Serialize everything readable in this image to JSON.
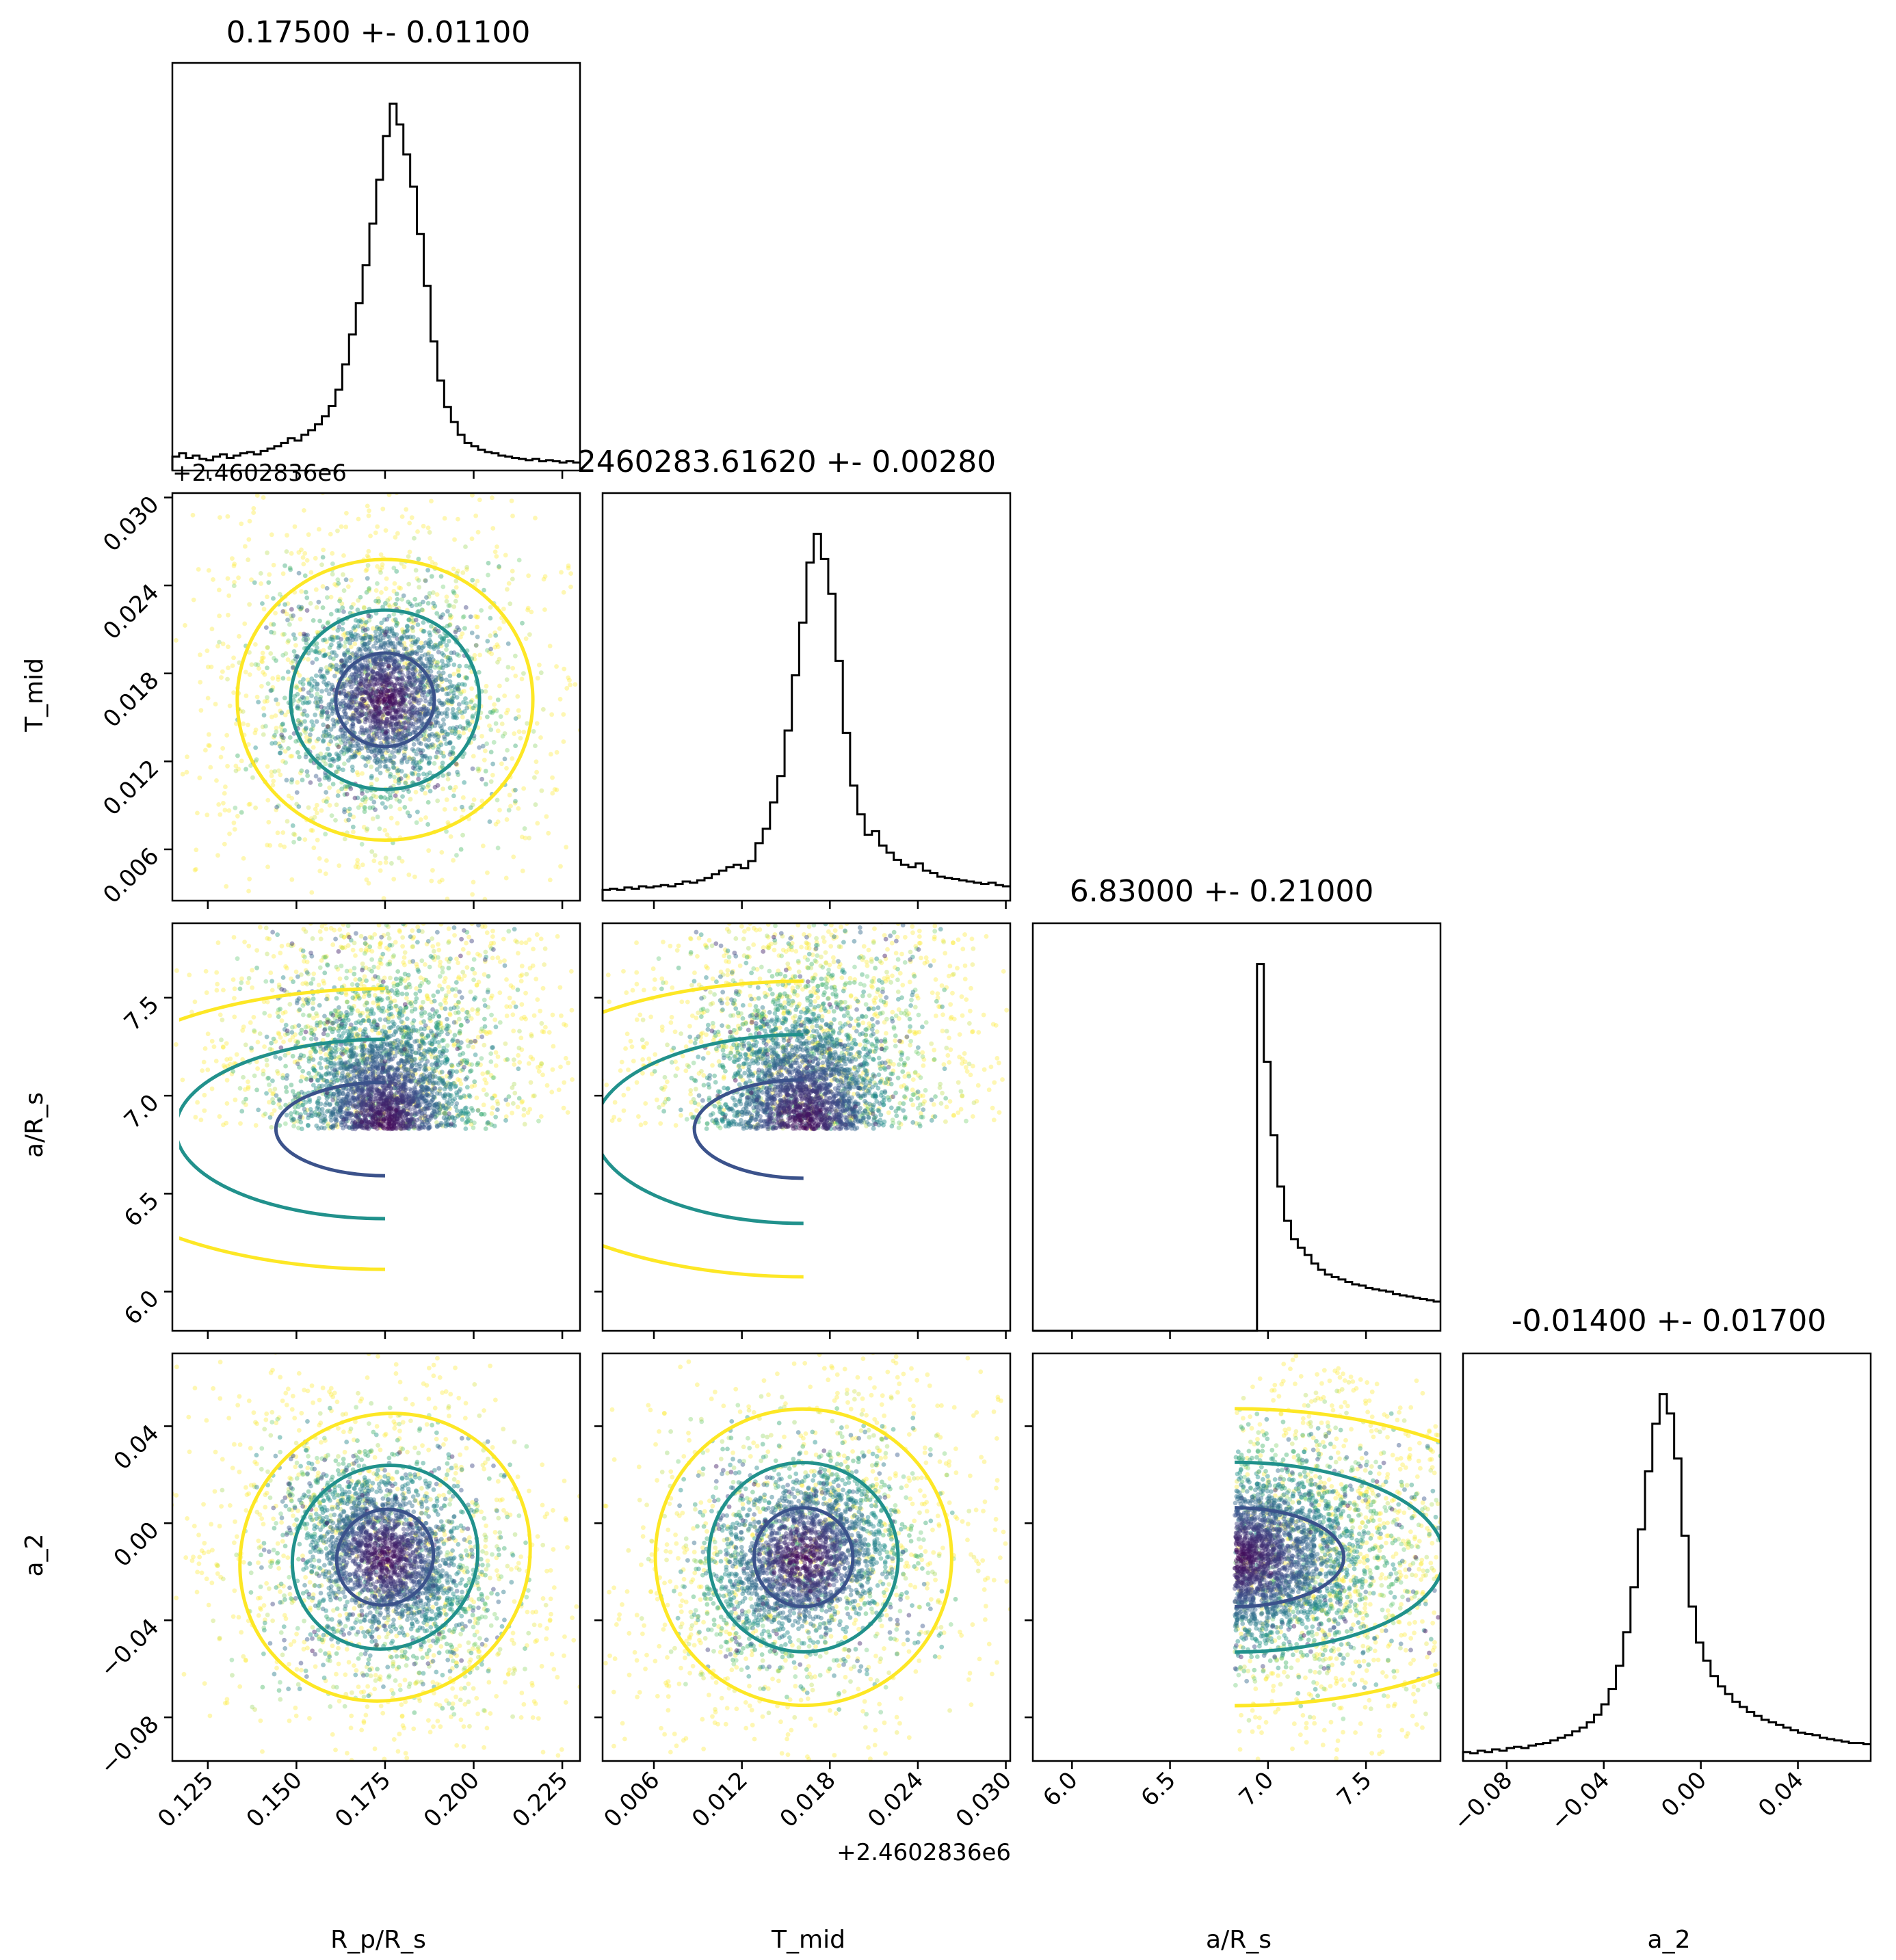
{
  "chart_data": {
    "type": "corner",
    "parameters": [
      {
        "key": "rp",
        "label": "R_p/R_s",
        "range": [
          0.115,
          0.23
        ],
        "ticks": [
          0.125,
          0.15,
          0.175,
          0.2,
          0.225
        ],
        "tick_labels": [
          "0.125",
          "0.150",
          "0.175",
          "0.200",
          "0.225"
        ],
        "mean": 0.175,
        "sigma": 0.011
      },
      {
        "key": "tmid",
        "label": "T_mid",
        "offset_label": "+2.4602836e6",
        "range": [
          0.0025,
          0.0303
        ],
        "ticks": [
          0.006,
          0.012,
          0.018,
          0.024,
          0.03
        ],
        "tick_labels": [
          "0.006",
          "0.012",
          "0.018",
          "0.024",
          "0.030"
        ],
        "mean": 0.0162,
        "sigma": 0.0028
      },
      {
        "key": "ars",
        "label": "a/R_s",
        "range": [
          5.8,
          7.88
        ],
        "ticks": [
          6.0,
          6.5,
          7.0,
          7.5
        ],
        "tick_labels": [
          "6.0",
          "6.5",
          "7.0",
          "7.5"
        ],
        "mean": 6.83,
        "sigma": 0.21,
        "lower_bound": 6.83
      },
      {
        "key": "a2",
        "label": "a_2",
        "range": [
          -0.098,
          0.07
        ],
        "ticks": [
          -0.08,
          -0.04,
          0.0,
          0.04
        ],
        "tick_labels": [
          "−0.08",
          "−0.04",
          "0.00",
          "0.04"
        ],
        "mean": -0.014,
        "sigma": 0.017
      }
    ],
    "titles": [
      "0.17500 +- 0.01100",
      "2460283.61620 +- 0.00280",
      "6.83000 +- 0.21000",
      "-0.01400 +- 0.01700"
    ],
    "offset_labels": [
      "+2.4602836e6",
      "+2.4602836e6"
    ],
    "axis_labels": {
      "x": [
        "R_p/R_s",
        "T_mid",
        "a/R_s",
        "a_2"
      ],
      "y": [
        "",
        "T_mid",
        "a/R_s",
        "a_2"
      ]
    },
    "histograms": {
      "rp": [
        12,
        15,
        11,
        13,
        10,
        9,
        12,
        14,
        11,
        13,
        15,
        16,
        14,
        17,
        19,
        21,
        24,
        28,
        26,
        31,
        35,
        40,
        47,
        56,
        70,
        92,
        118,
        145,
        178,
        214,
        252,
        290,
        318,
        300,
        274,
        246,
        205,
        160,
        112,
        78,
        55,
        42,
        31,
        24,
        21,
        18,
        16,
        15,
        13,
        12,
        11,
        10,
        9,
        10,
        8,
        9,
        8,
        7,
        8,
        7
      ],
      "tmid": [
        9,
        10,
        9,
        11,
        10,
        12,
        11,
        12,
        13,
        12,
        14,
        16,
        15,
        17,
        19,
        22,
        25,
        28,
        30,
        27,
        33,
        48,
        60,
        82,
        104,
        142,
        188,
        232,
        282,
        306,
        285,
        256,
        200,
        140,
        96,
        72,
        55,
        58,
        46,
        40,
        34,
        30,
        28,
        31,
        25,
        23,
        20,
        19,
        18,
        17,
        16,
        15,
        14,
        15,
        13,
        12
      ],
      "ars": [
        0,
        0,
        0,
        0,
        0,
        0,
        0,
        0,
        0,
        0,
        0,
        0,
        0,
        0,
        0,
        0,
        0,
        0,
        0,
        0,
        0,
        0,
        0,
        0,
        0,
        0,
        0,
        0,
        0,
        0,
        0,
        0,
        0,
        300,
        220,
        160,
        118,
        90,
        75,
        68,
        62,
        55,
        50,
        46,
        44,
        42,
        40,
        38,
        37,
        35,
        34,
        33,
        32,
        30,
        29,
        28,
        27,
        26,
        25,
        24
      ],
      "a2": [
        7,
        6,
        8,
        7,
        9,
        8,
        10,
        11,
        10,
        12,
        13,
        14,
        16,
        18,
        20,
        23,
        26,
        30,
        36,
        44,
        56,
        74,
        100,
        135,
        180,
        225,
        262,
        285,
        270,
        235,
        175,
        120,
        92,
        78,
        66,
        58,
        52,
        46,
        42,
        38,
        35,
        32,
        30,
        28,
        26,
        24,
        22,
        21,
        20,
        18,
        17,
        16,
        15,
        14,
        14,
        13
      ]
    },
    "contours": [
      {
        "pair": [
          "tmid",
          "rp"
        ],
        "rho": 0.0
      },
      {
        "pair": [
          "ars",
          "rp"
        ],
        "rho": 0.0,
        "truncated_at": 6.83
      },
      {
        "pair": [
          "ars",
          "tmid"
        ],
        "rho": 0.0,
        "truncated_at": 6.83
      },
      {
        "pair": [
          "a2",
          "rp"
        ],
        "rho": -0.35
      },
      {
        "pair": [
          "a2",
          "tmid"
        ],
        "rho": 0.3
      },
      {
        "pair": [
          "a2",
          "ars"
        ],
        "rho": 0.0,
        "truncated_at": 6.83
      }
    ],
    "contour_colors": [
      "#3b528b",
      "#21918c",
      "#fde725"
    ],
    "point_colormap": "viridis",
    "grid": false,
    "legend": "none"
  }
}
